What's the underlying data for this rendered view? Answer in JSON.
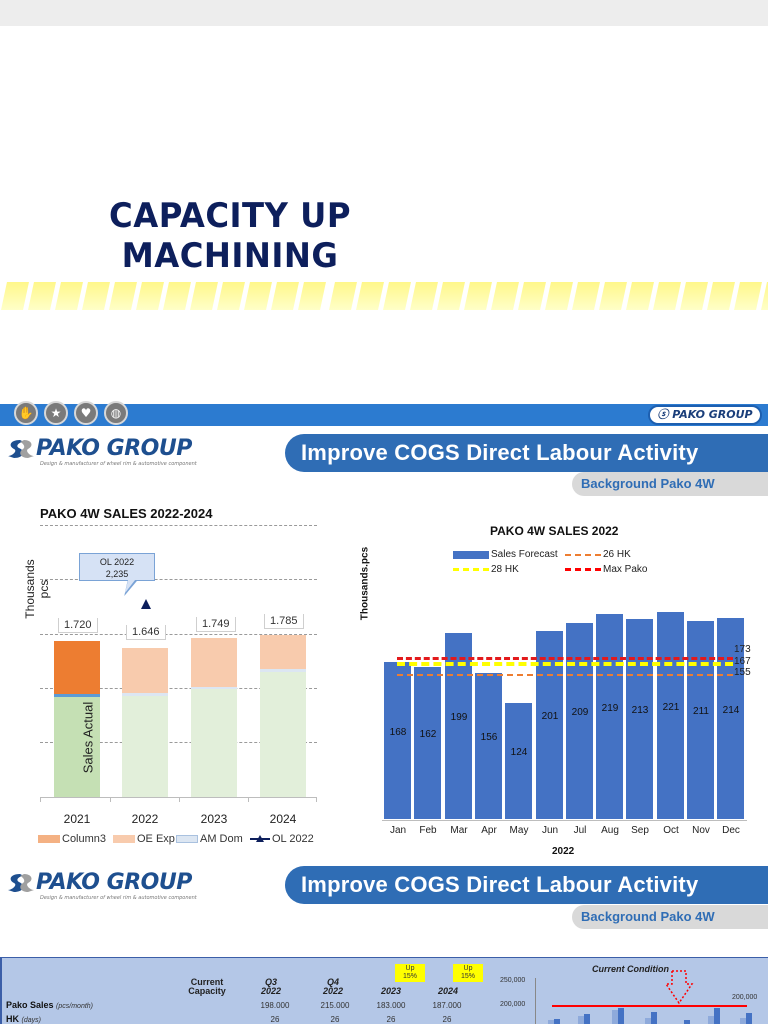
{
  "slide1": {
    "title_line1": "CAPACITY UP",
    "title_line2": "MACHINING"
  },
  "header": {
    "pako_pill": "ⓢ PAKO GROUP",
    "icons": [
      "hand-certificate-icon",
      "star-award-icon",
      "heart-people-icon",
      "leaf-globe-icon"
    ]
  },
  "logo": {
    "text": "PAKO GROUP",
    "tagline": "Design & manufacturer of wheel rim & automotive component"
  },
  "section1": {
    "banner": "Improve COGS Direct Labour Activity",
    "subbanner": "Background Pako 4W"
  },
  "section2": {
    "banner": "Improve COGS Direct Labour Activity",
    "subbanner": "Background Pako 4W"
  },
  "chart_data": [
    {
      "type": "bar",
      "stacked": true,
      "title": "PAKO 4W SALES 2022-2024",
      "ylabel": "Thousands pcs",
      "xlabel": "",
      "categories": [
        "2021",
        "2022",
        "2023",
        "2024"
      ],
      "totals": [
        "1.720",
        "1.646",
        "1.749",
        "1.785"
      ],
      "series": [
        {
          "name": "Sales Actual / AM Dom base",
          "values": [
            1000,
            1000,
            1080,
            1150
          ],
          "color": "#e2efda"
        },
        {
          "name": "AM Dom",
          "values": [
            20,
            10,
            10,
            30
          ],
          "color": "#dce6f2"
        },
        {
          "name": "OE Exp",
          "values": [
            0,
            636,
            659,
            605
          ],
          "color": "#f8cbad"
        },
        {
          "name": "Column3",
          "values": [
            700,
            0,
            0,
            0
          ],
          "color": "#ed7d31"
        }
      ],
      "annotation": {
        "label": "OL 2022",
        "value": "2,235"
      },
      "bar_inner_label": "Sales Actual",
      "legend": [
        "Column3",
        "OE Exp",
        "AM Dom",
        "OL 2022"
      ],
      "grid": true
    },
    {
      "type": "bar",
      "title": "PAKO 4W SALES 2022",
      "ylabel": "Thousands.pcs",
      "xlabel": "2022",
      "categories": [
        "Jan",
        "Feb",
        "Mar",
        "Apr",
        "May",
        "Jun",
        "Jul",
        "Aug",
        "Sep",
        "Oct",
        "Nov",
        "Dec"
      ],
      "series": [
        {
          "name": "Sales Forecast",
          "values": [
            168,
            162,
            199,
            156,
            124,
            201,
            209,
            219,
            213,
            221,
            211,
            214
          ],
          "color": "#4472c4"
        }
      ],
      "reference_lines": [
        {
          "name": "26 HK",
          "value": 155,
          "color": "#ed7d31",
          "style": "dashed"
        },
        {
          "name": "28 HK",
          "value": 167,
          "color": "#ffff00",
          "style": "dashed"
        },
        {
          "name": "Max Pako",
          "value": 173,
          "color": "#ff0000",
          "style": "dashed"
        }
      ],
      "legend": [
        "Sales Forecast",
        "26 HK",
        "28 HK",
        "Max Pako"
      ]
    },
    {
      "type": "bar",
      "title": "Current Condition",
      "yticks": [
        "250,000",
        "200,000"
      ],
      "reference_lines": [
        {
          "name": "Capacity",
          "value": 200000,
          "label": "200,000",
          "color": "#ff0000"
        }
      ]
    }
  ],
  "left_chart": {
    "title": "PAKO 4W SALES 2022-2024",
    "ylabel": "Thousands pcs",
    "callout_line1": "OL 2022",
    "callout_line2": "2,235",
    "inner_label": "Sales Actual",
    "x": [
      "2021",
      "2022",
      "2023",
      "2024"
    ],
    "totals": [
      "1.720",
      "1.646",
      "1.749",
      "1.785"
    ],
    "legend": [
      "Column3",
      "OE Exp",
      "AM Dom",
      "OL 2022"
    ]
  },
  "right_chart": {
    "title": "PAKO 4W SALES 2022",
    "ylabel": "Thousands.pcs",
    "xtitle": "2022",
    "months": [
      "Jan",
      "Feb",
      "Mar",
      "Apr",
      "May",
      "Jun",
      "Jul",
      "Aug",
      "Sep",
      "Oct",
      "Nov",
      "Dec"
    ],
    "values": [
      "168",
      "162",
      "199",
      "156",
      "124",
      "201",
      "209",
      "219",
      "213",
      "221",
      "211",
      "214"
    ],
    "legend": {
      "sales": "Sales Forecast",
      "hk26": "26 HK",
      "hk28": "28 HK",
      "max": "Max Pako"
    },
    "line_labels": {
      "max": "173",
      "hk28": "167",
      "hk26": "155"
    }
  },
  "table": {
    "col_current": "Current Capacity",
    "cols": [
      {
        "q": "Q3",
        "year": "2022"
      },
      {
        "q": "Q4",
        "year": "2022"
      },
      {
        "q": "",
        "year": "2023",
        "badge": "Up 15%"
      },
      {
        "q": "",
        "year": "2024",
        "badge": "Up 15%"
      }
    ],
    "badge_line1": "Up",
    "badge_line2": "15%",
    "rows": [
      {
        "label": "Pako Sales",
        "unit": "(pcs/month)",
        "values": [
          "198.000",
          "215.000",
          "183.000",
          "187.000"
        ]
      },
      {
        "label": "HK",
        "unit": "(days)",
        "values": [
          "26",
          "26",
          "26",
          "26"
        ]
      }
    ]
  },
  "current_condition": {
    "title": "Current Condition",
    "ytick_top": "250,000",
    "ytick_mid": "200,000",
    "line_label": "200,000"
  }
}
